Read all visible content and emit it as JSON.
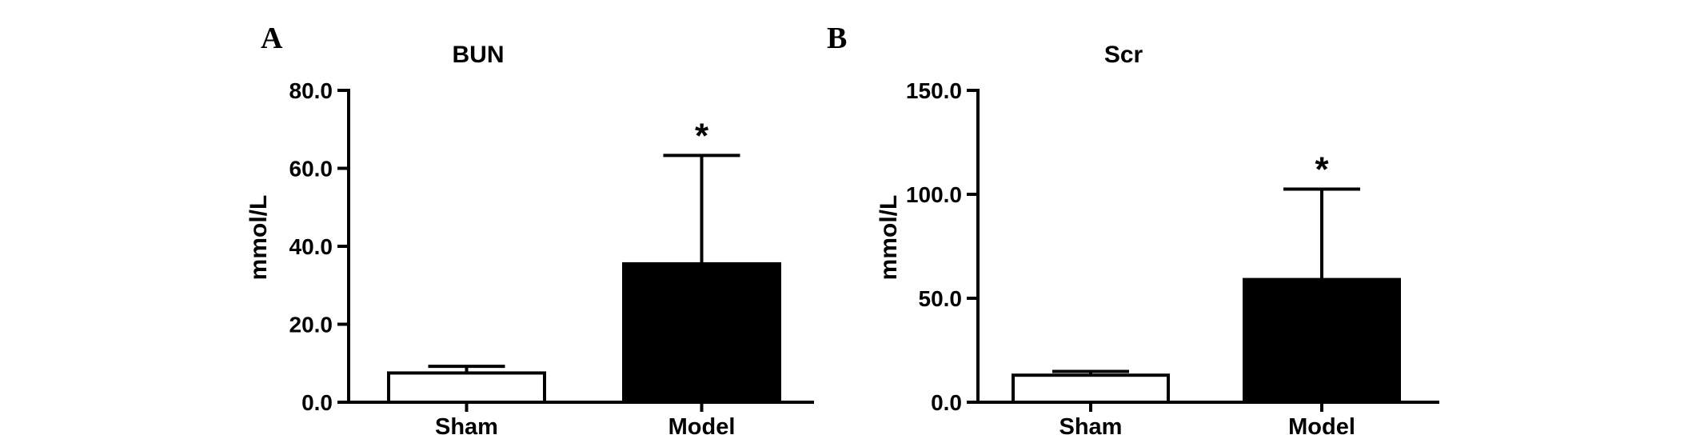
{
  "chart_data": [
    {
      "panel": "A",
      "type": "bar",
      "title": "BUN",
      "ylabel": "mmol/L",
      "xlabel": "",
      "categories": [
        "Sham",
        "Model"
      ],
      "values": [
        7.5,
        35.5
      ],
      "error_upper": [
        9.2,
        63.3
      ],
      "fill_colors": [
        "#ffffff",
        "#000000"
      ],
      "significance": [
        "",
        "*"
      ],
      "ylim": [
        0,
        80
      ],
      "yticks": [
        0,
        20,
        40,
        60,
        80
      ],
      "ytick_labels": [
        "0.0",
        "20.0",
        "40.0",
        "60.0",
        "80.0"
      ],
      "grid": false,
      "legend": "none"
    },
    {
      "panel": "B",
      "type": "bar",
      "title": "Scr",
      "ylabel": "mmol/L",
      "xlabel": "",
      "categories": [
        "Sham",
        "Model"
      ],
      "values": [
        13.0,
        59.0
      ],
      "error_upper": [
        14.8,
        102.5
      ],
      "fill_colors": [
        "#ffffff",
        "#000000"
      ],
      "significance": [
        "",
        "*"
      ],
      "ylim": [
        0,
        150
      ],
      "yticks": [
        0,
        50,
        100,
        150
      ],
      "ytick_labels": [
        "0.0",
        "50.0",
        "100.0",
        "150.0"
      ],
      "grid": false,
      "legend": "none"
    }
  ]
}
